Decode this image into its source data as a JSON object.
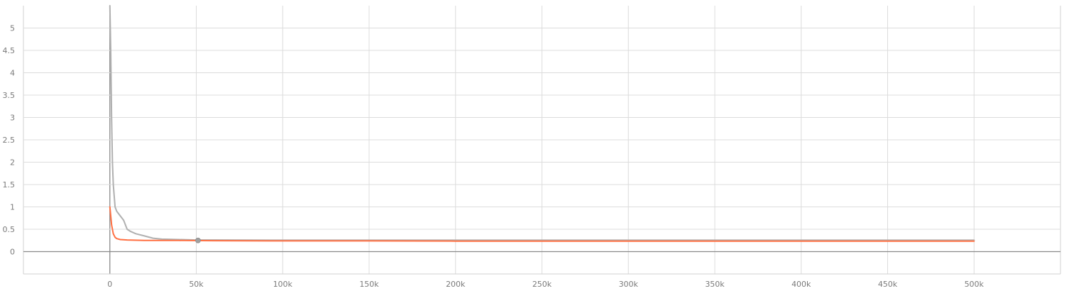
{
  "chart_data": {
    "type": "line",
    "title": "",
    "xlabel": "",
    "ylabel": "",
    "xlim": [
      -50000,
      550000
    ],
    "ylim": [
      -0.5,
      5.5
    ],
    "grid": true,
    "x_ticks": [
      0,
      50000,
      100000,
      150000,
      200000,
      250000,
      300000,
      350000,
      400000,
      450000,
      500000
    ],
    "x_tick_labels": [
      "0",
      "50k",
      "100k",
      "150k",
      "200k",
      "250k",
      "300k",
      "350k",
      "400k",
      "450k",
      "500k"
    ],
    "y_ticks": [
      0,
      0.5,
      1,
      1.5,
      2,
      2.5,
      3,
      3.5,
      4,
      4.5,
      5
    ],
    "y_tick_labels": [
      "0",
      "0.5",
      "1",
      "1.5",
      "2",
      "2.5",
      "3",
      "3.5",
      "4",
      "4.5",
      "5"
    ],
    "series": [
      {
        "color": "#ff7043",
        "x": [
          0,
          1000,
          2000,
          3000,
          4000,
          6000,
          10000,
          20000,
          40000,
          60000,
          100000,
          150000,
          200000,
          250000,
          300000,
          350000,
          400000,
          450000,
          500000
        ],
        "values": [
          1.0,
          0.6,
          0.4,
          0.32,
          0.29,
          0.27,
          0.26,
          0.25,
          0.25,
          0.245,
          0.24,
          0.24,
          0.235,
          0.235,
          0.235,
          0.235,
          0.235,
          0.235,
          0.235
        ]
      },
      {
        "color": "#b0b0b0",
        "x": [
          0,
          500,
          1000,
          1500,
          2000,
          3000,
          4000,
          6000,
          8000,
          10000,
          12000,
          15000,
          20000,
          25000,
          30000,
          40000,
          50000,
          60000,
          100000,
          150000,
          200000,
          250000,
          300000,
          350000,
          400000,
          450000,
          500000
        ],
        "values": [
          5.5,
          4.5,
          3.0,
          2.0,
          1.5,
          1.0,
          0.9,
          0.8,
          0.7,
          0.5,
          0.45,
          0.4,
          0.35,
          0.3,
          0.28,
          0.27,
          0.26,
          0.26,
          0.255,
          0.255,
          0.255,
          0.255,
          0.255,
          0.255,
          0.255,
          0.255,
          0.255
        ]
      }
    ],
    "marker": {
      "x": 51000,
      "y": 0.25,
      "color": "#a0a0a0"
    }
  }
}
